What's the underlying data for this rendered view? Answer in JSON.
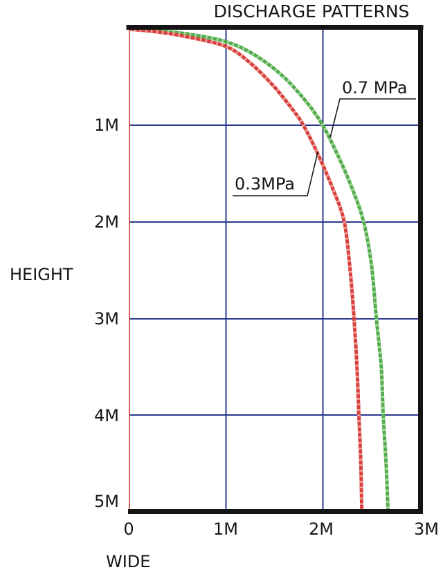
{
  "title": "DISCHARGE PATTERNS",
  "colors": {
    "text": "#15151c",
    "grid": "#2b3990",
    "border": "#141414",
    "y_axis": "#c0392b",
    "leader": "#1a1a1a",
    "series_green": "#53ad4d",
    "series_red": "#d9403c"
  },
  "axes": {
    "x": {
      "label": "WIDE",
      "ticks": [
        "0",
        "1M",
        "2M",
        "3M"
      ]
    },
    "y": {
      "label": "HEIGHT",
      "ticks": [
        "1M",
        "2M",
        "3M",
        "4M",
        "5M"
      ]
    }
  },
  "chart_data": {
    "type": "line",
    "title": "DISCHARGE PATTERNS",
    "xlabel": "WIDE",
    "ylabel": "HEIGHT",
    "x_unit": "meters",
    "y_unit": "meters",
    "xlim": [
      0,
      3
    ],
    "ylim": [
      0,
      5
    ],
    "y_direction": "inverted (height increases downward from spray origin)",
    "grid": true,
    "x_ticks": [
      "0",
      "1M",
      "2M",
      "3M"
    ],
    "y_ticks": [
      "1M",
      "2M",
      "3M",
      "4M",
      "5M"
    ],
    "series": [
      {
        "id": "green",
        "name": "0.7 MPa",
        "color": "#53ad4d",
        "hatch_color": "#b8e0b0",
        "points": [
          [
            0,
            0
          ],
          [
            0.3,
            0.02
          ],
          [
            0.6,
            0.05
          ],
          [
            1.0,
            0.13
          ],
          [
            1.3,
            0.27
          ],
          [
            1.6,
            0.5
          ],
          [
            1.85,
            0.78
          ],
          [
            2.0,
            1.0
          ],
          [
            2.15,
            1.3
          ],
          [
            2.3,
            1.65
          ],
          [
            2.42,
            2.0
          ],
          [
            2.5,
            2.45
          ],
          [
            2.55,
            3.0
          ],
          [
            2.6,
            3.5
          ],
          [
            2.62,
            4.0
          ],
          [
            2.65,
            4.5
          ],
          [
            2.67,
            5.0
          ]
        ]
      },
      {
        "id": "red",
        "name": "0.3MPa",
        "color": "#d9403c",
        "hatch_color": "#efb3ad",
        "points": [
          [
            0,
            0
          ],
          [
            0.3,
            0.03
          ],
          [
            0.6,
            0.08
          ],
          [
            1.0,
            0.18
          ],
          [
            1.25,
            0.35
          ],
          [
            1.5,
            0.6
          ],
          [
            1.7,
            0.85
          ],
          [
            1.8,
            1.0
          ],
          [
            1.95,
            1.3
          ],
          [
            2.1,
            1.65
          ],
          [
            2.22,
            2.0
          ],
          [
            2.28,
            2.5
          ],
          [
            2.32,
            3.0
          ],
          [
            2.35,
            3.5
          ],
          [
            2.37,
            4.0
          ],
          [
            2.39,
            4.5
          ],
          [
            2.4,
            5.0
          ]
        ]
      }
    ],
    "annotations": [
      {
        "text": "0.7 MPa",
        "attaches_to": "green curve"
      },
      {
        "text": "0.3MPa",
        "attaches_to": "red curve"
      }
    ]
  }
}
